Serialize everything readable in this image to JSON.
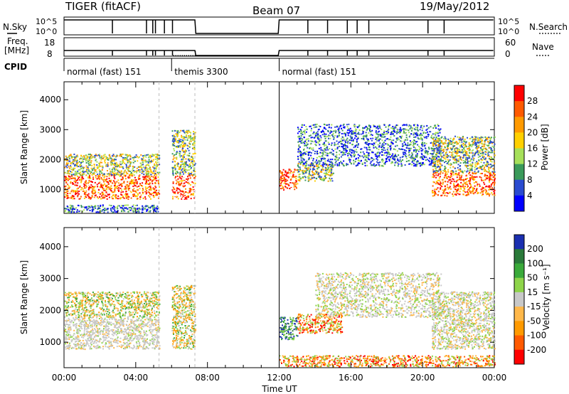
{
  "header": {
    "radar": "TIGER (fitACF)",
    "beam": "Beam 07",
    "date": "19/May/2012"
  },
  "strips": {
    "nsky": {
      "label": "N.Sky",
      "ticks": [
        "10^5",
        "10^0"
      ]
    },
    "nsearch": {
      "label": "N.Search",
      "ticks": [
        "10^5",
        "10^0"
      ]
    },
    "freq": {
      "label": "Freq.",
      "unit": "[MHz]",
      "ticks": [
        "18",
        "8"
      ]
    },
    "nave": {
      "label": "Nave",
      "ticks": [
        "60",
        "0"
      ]
    },
    "cpid": {
      "label": "CPID"
    },
    "modes": [
      {
        "name": "normal (fast) 151",
        "start": 0,
        "end": 6
      },
      {
        "name": "themis 3300",
        "start": 6,
        "end": 12
      },
      {
        "name": "normal (fast) 151",
        "start": 12,
        "end": 24
      }
    ],
    "data_gaps_hours": [
      [
        7.33,
        12.0
      ]
    ]
  },
  "chart_data": [
    {
      "type": "heatmap",
      "panel": "power",
      "ylabel": "Slant Range [km]",
      "xlabel": "",
      "xlim": [
        0,
        24
      ],
      "ylim": [
        200,
        4600
      ],
      "yticks": [
        "1000",
        "2000",
        "3000",
        "4000"
      ],
      "colorbar": {
        "label": "Power [dB]",
        "ticks": [
          "28",
          "24",
          "20",
          "16",
          "12",
          "8",
          "4"
        ],
        "colors": [
          "#ff0000",
          "#ff5a00",
          "#ff9a00",
          "#ffd000",
          "#a6e05a",
          "#3a9a5a",
          "#2a4bd0",
          "#0000ff"
        ]
      },
      "regions": [
        {
          "t0": 0.0,
          "t1": 5.3,
          "r0": 700,
          "r1": 1500,
          "level": "high"
        },
        {
          "t0": 0.0,
          "t1": 5.3,
          "r0": 1500,
          "r1": 2200,
          "level": "medium"
        },
        {
          "t0": 0.0,
          "t1": 5.3,
          "r0": 250,
          "r1": 500,
          "level": "low"
        },
        {
          "t0": 6.0,
          "t1": 7.3,
          "r0": 700,
          "r1": 1500,
          "level": "high"
        },
        {
          "t0": 6.0,
          "t1": 7.3,
          "r0": 1500,
          "r1": 3000,
          "level": "medium"
        },
        {
          "t0": 12.0,
          "t1": 13.0,
          "r0": 1000,
          "r1": 1700,
          "level": "high"
        },
        {
          "t0": 13.0,
          "t1": 15.0,
          "r0": 1300,
          "r1": 1900,
          "level": "medium"
        },
        {
          "t0": 13.0,
          "t1": 21.0,
          "r0": 1800,
          "r1": 3200,
          "level": "low"
        },
        {
          "t0": 20.5,
          "t1": 24.0,
          "r0": 800,
          "r1": 1600,
          "level": "high"
        },
        {
          "t0": 20.5,
          "t1": 24.0,
          "r0": 1600,
          "r1": 2800,
          "level": "medium"
        }
      ]
    },
    {
      "type": "heatmap",
      "panel": "velocity",
      "ylabel": "Slant Range [km]",
      "xlabel": "Time UT",
      "xlim": [
        0,
        24
      ],
      "ylim": [
        200,
        4600
      ],
      "yticks": [
        "1000",
        "2000",
        "3000",
        "4000"
      ],
      "xticks": [
        "00:00",
        "04:00",
        "08:00",
        "12:00",
        "16:00",
        "20:00",
        "00:00"
      ],
      "colorbar": {
        "label": "Velocity [m s⁻¹]",
        "ticks": [
          "200",
          "100",
          "50",
          "15",
          "-15",
          "-50",
          "-100",
          "-200"
        ],
        "colors": [
          "#1a2fb0",
          "#2a7a3a",
          "#3aaa3a",
          "#8ed44a",
          "#c8c8c8",
          "#ffb84a",
          "#ff9a00",
          "#ff5a00",
          "#ff0000"
        ]
      },
      "regions": [
        {
          "t0": 0.0,
          "t1": 5.3,
          "r0": 800,
          "r1": 1800,
          "level": "ground"
        },
        {
          "t0": 0.0,
          "t1": 5.3,
          "r0": 1800,
          "r1": 2600,
          "level": "mixed"
        },
        {
          "t0": 6.0,
          "t1": 7.3,
          "r0": 800,
          "r1": 2800,
          "level": "mixed"
        },
        {
          "t0": 12.0,
          "t1": 13.0,
          "r0": 1100,
          "r1": 1800,
          "level": "positive"
        },
        {
          "t0": 13.0,
          "t1": 15.5,
          "r0": 1300,
          "r1": 1900,
          "level": "negative"
        },
        {
          "t0": 12.0,
          "t1": 24.0,
          "r0": 250,
          "r1": 600,
          "level": "negative"
        },
        {
          "t0": 14.0,
          "t1": 21.0,
          "r0": 1800,
          "r1": 3200,
          "level": "ground"
        },
        {
          "t0": 20.5,
          "t1": 24.0,
          "r0": 800,
          "r1": 2600,
          "level": "ground"
        }
      ]
    }
  ]
}
